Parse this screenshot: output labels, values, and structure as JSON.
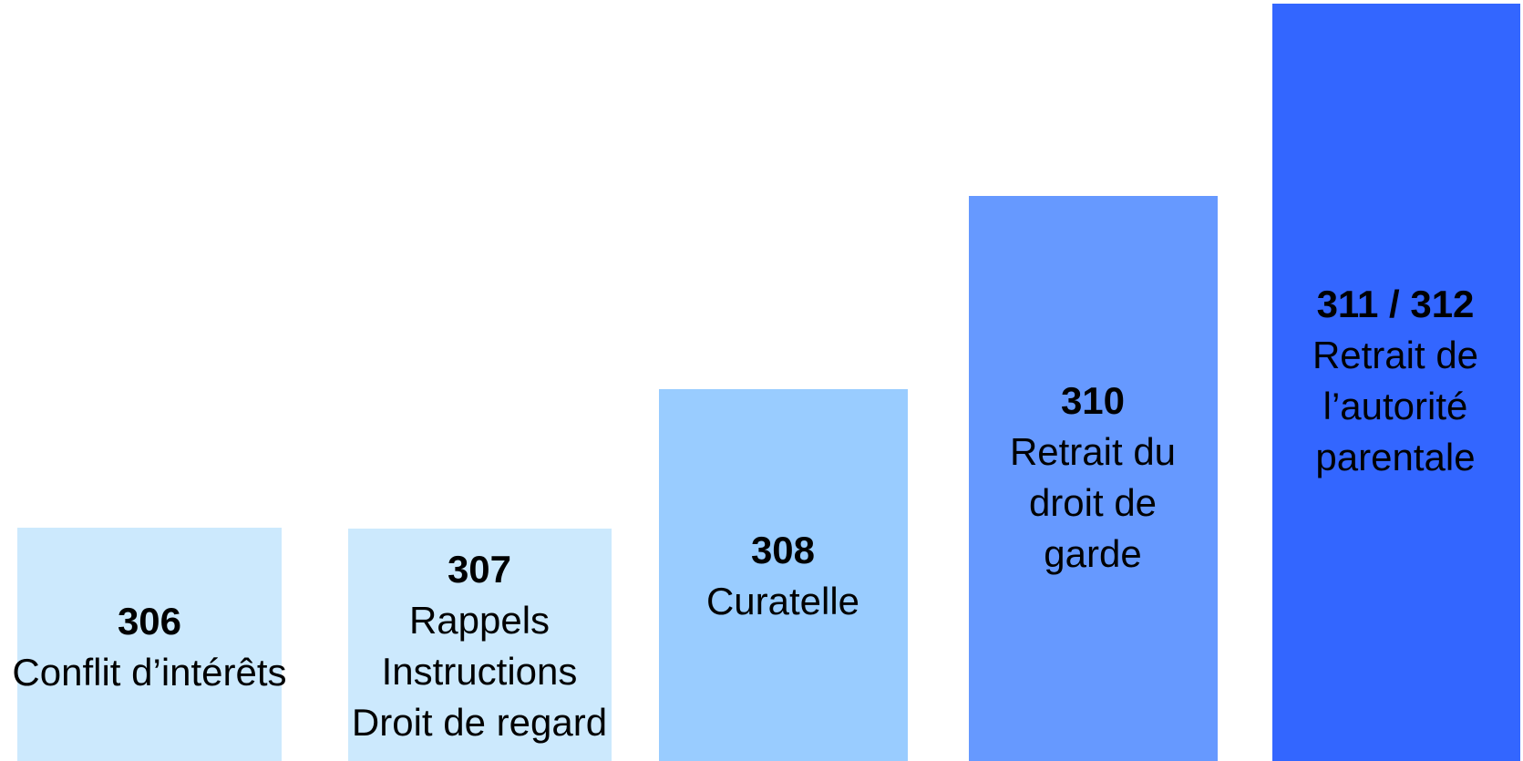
{
  "blocks": [
    {
      "number": "306",
      "lines": [
        "Conflit d’intérêts"
      ]
    },
    {
      "number": "307",
      "lines": [
        "Rappels",
        "Instructions",
        "Droit de regard"
      ]
    },
    {
      "number": "308",
      "lines": [
        "Curatelle"
      ]
    },
    {
      "number": "310",
      "lines": [
        "Retrait du",
        "droit de",
        "garde"
      ]
    },
    {
      "number": "311 / 312",
      "lines": [
        "Retrait de",
        "l’autorité",
        "parentale"
      ]
    }
  ]
}
